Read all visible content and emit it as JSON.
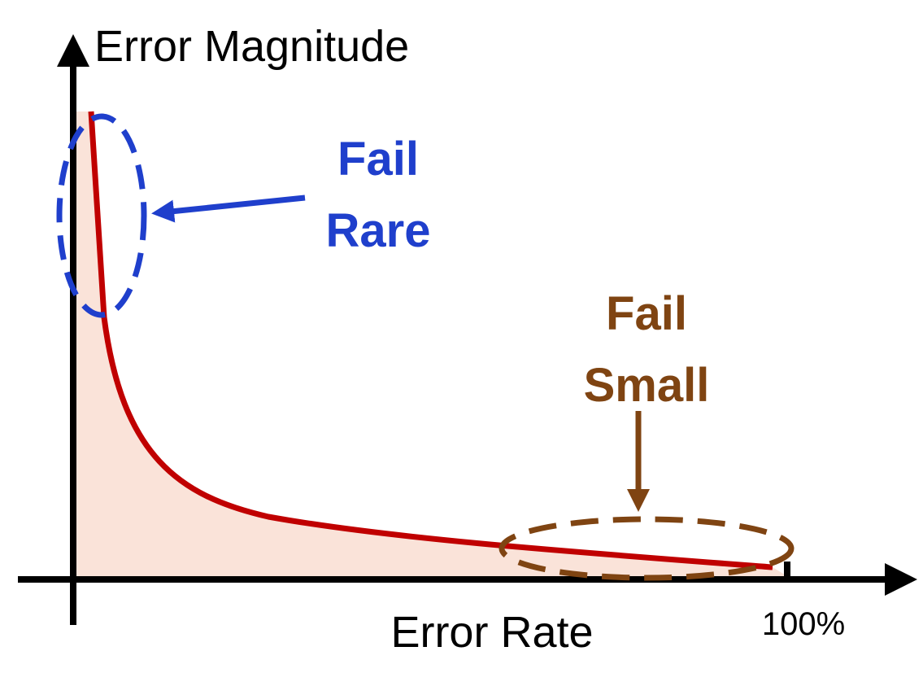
{
  "axes": {
    "y_label": "Error Magnitude",
    "x_label": "Error Rate",
    "x_end_label": "100%"
  },
  "annotations": [
    {
      "lines": [
        "Fail",
        "Rare"
      ]
    },
    {
      "lines": [
        "Fail",
        "Small"
      ]
    }
  ]
}
